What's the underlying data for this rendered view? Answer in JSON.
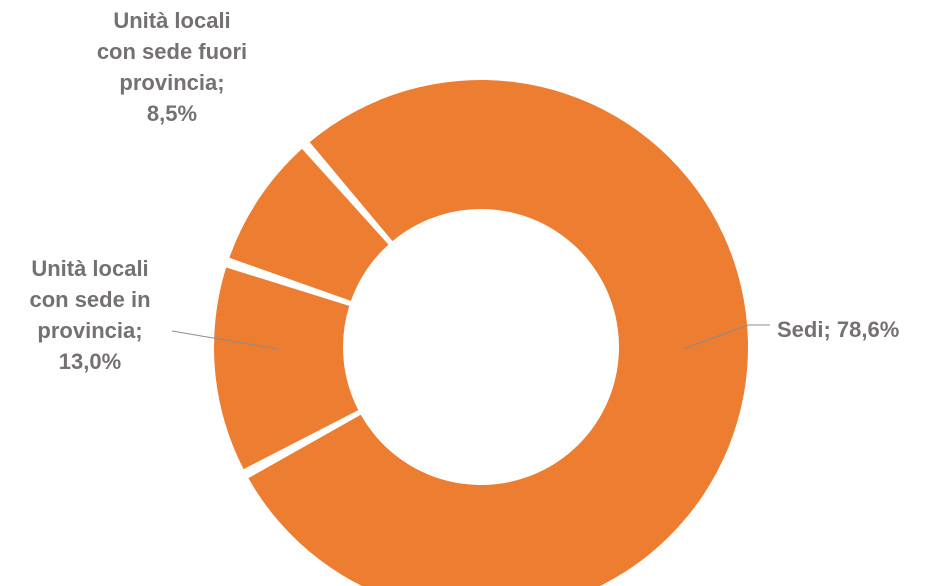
{
  "chart_data": {
    "type": "pie",
    "variant": "donut",
    "color": "#ED7D31",
    "label_color": "#767171",
    "slices": [
      {
        "name": "Sedi",
        "value": 78.6,
        "label": [
          "Sedi; 78,6%"
        ]
      },
      {
        "name": "Unità locali con sede in provincia",
        "value": 13.0,
        "label": [
          "Unità locali",
          "con sede in",
          "provincia;",
          "13,0%"
        ]
      },
      {
        "name": "Unità locali con sede fuori provincia",
        "value": 8.5,
        "label": [
          "Unità locali",
          "con sede fuori",
          "provincia;",
          "8,5%"
        ]
      }
    ]
  }
}
